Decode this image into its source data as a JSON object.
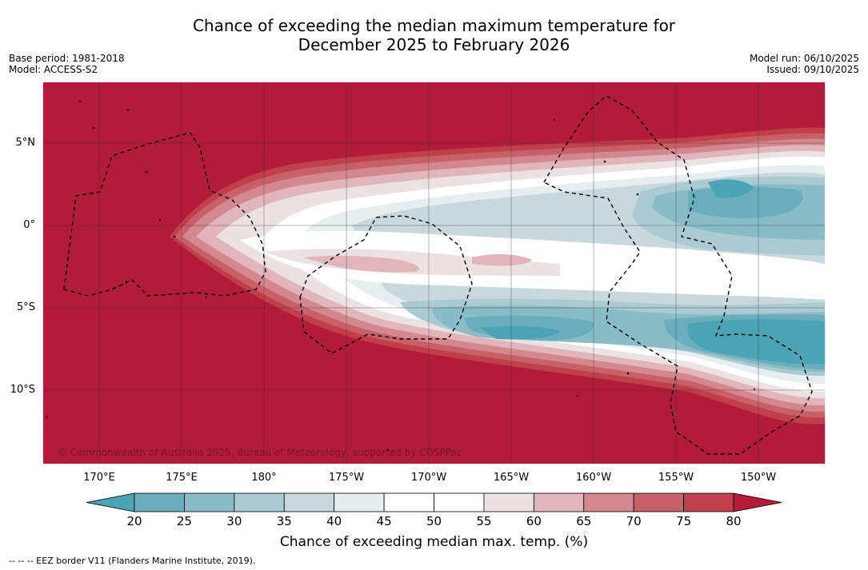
{
  "title_line1": "Chance of exceeding the median maximum temperature for",
  "title_line2": "December 2025 to February 2026",
  "meta": {
    "base_period": "Base period: 1981-2018",
    "model": "Model: ACCESS-S2",
    "model_run": "Model run: 06/10/2025",
    "issued": "Issued: 09/10/2025"
  },
  "copyright": "© Commonwealth of Australia 2025, Bureau of Meteorology, supported by COSPPac",
  "latitude_labels": [
    "5°N",
    "0°",
    "5°S",
    "10°S"
  ],
  "longitude_labels": [
    "170°E",
    "175°E",
    "180°",
    "175°W",
    "170°W",
    "165°W",
    "160°W",
    "155°W",
    "150°W"
  ],
  "colorbar": {
    "ticks": [
      "20",
      "25",
      "30",
      "35",
      "40",
      "45",
      "50",
      "55",
      "60",
      "65",
      "70",
      "75",
      "80"
    ],
    "label": "Chance of exceeding median max. temp. (%)",
    "colors": [
      "#4ba3b5",
      "#6aadbd",
      "#89bcc7",
      "#a9cbd1",
      "#c9d8dc",
      "#e6eef0",
      "#ffffff",
      "#ffffff",
      "#ece2e4",
      "#e0b5bc",
      "#d3878f",
      "#c86069",
      "#bf3f4c",
      "#b31c38"
    ]
  },
  "footer": "-- -- -- EEZ border V11 (Flanders Marine Institute, 2019)."
}
